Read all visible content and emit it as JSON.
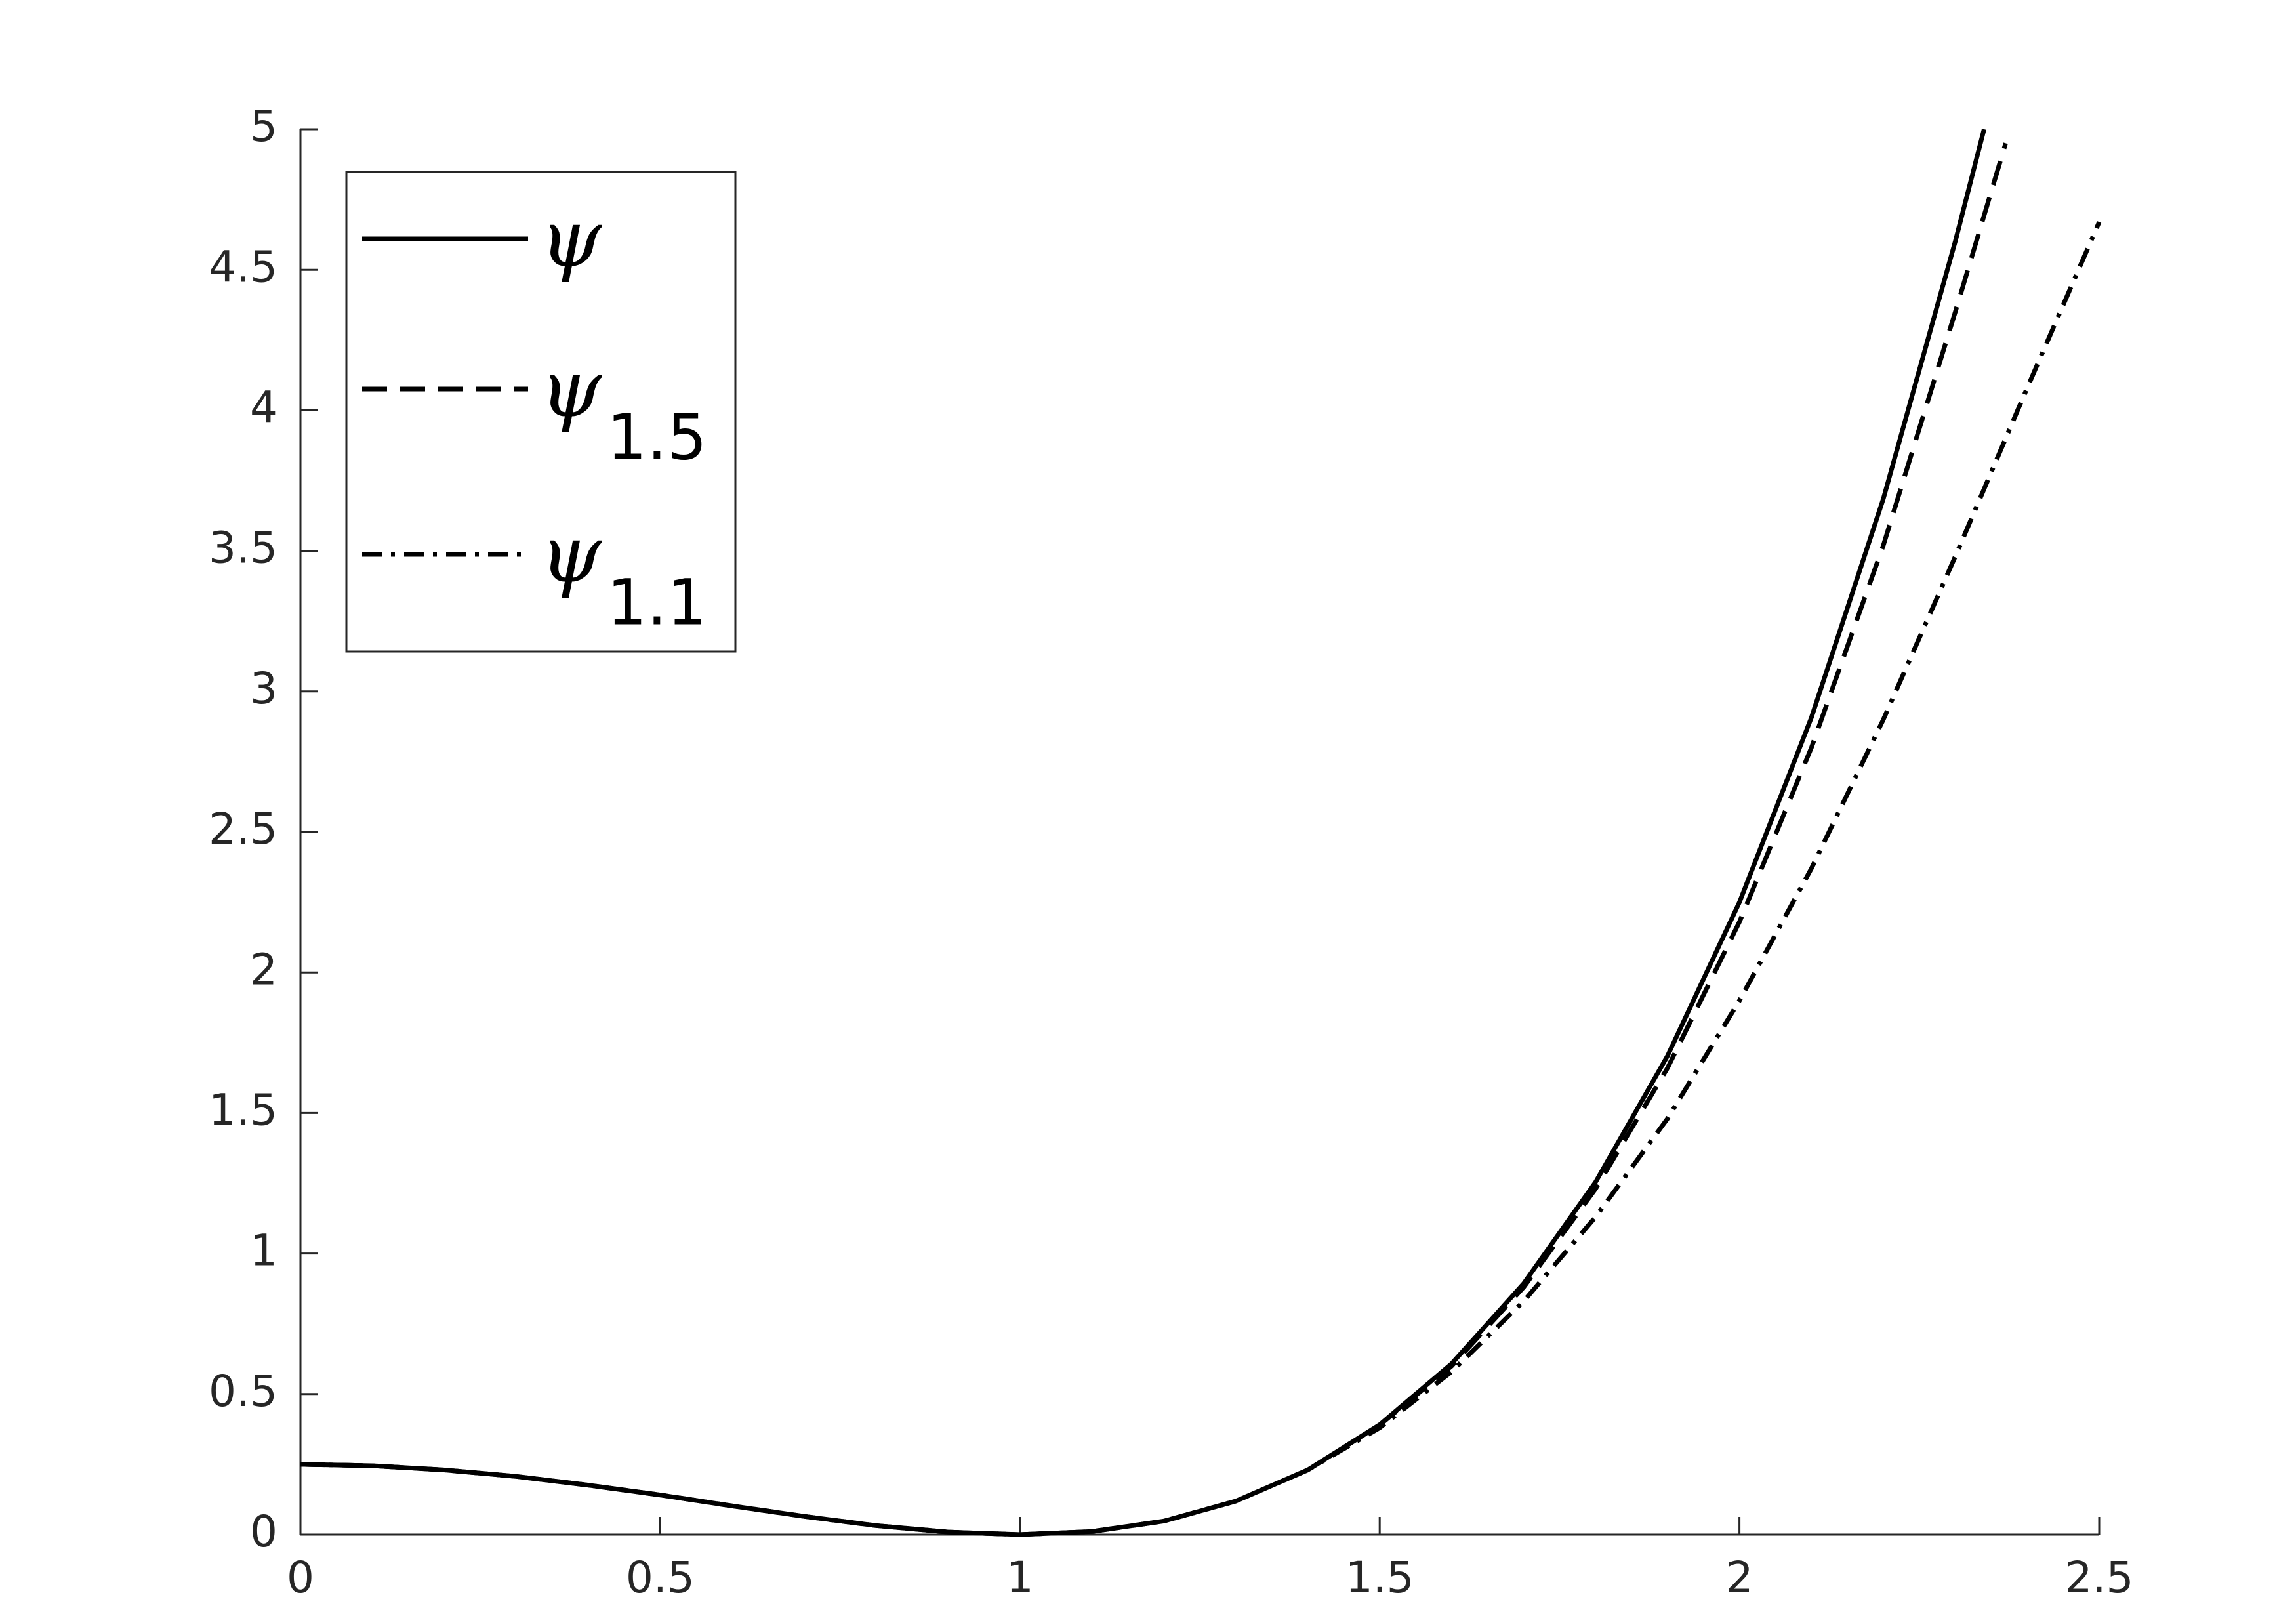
{
  "chart_data": {
    "type": "line",
    "xlim": [
      0,
      2.5
    ],
    "xticks": [
      0,
      0.5,
      1,
      1.5,
      2,
      2.5
    ],
    "ylim": [
      0,
      5
    ],
    "yticks": [
      0,
      0.5,
      1,
      1.5,
      2,
      2.5,
      3,
      3.5,
      4,
      4.5,
      5
    ],
    "legend": "upper left",
    "series": [
      {
        "name": "ψ",
        "color": "#000000",
        "dash": "solid",
        "x": [
          0,
          0.1,
          0.2,
          0.3,
          0.4,
          0.5,
          0.6,
          0.7,
          0.8,
          0.9,
          1,
          1.1,
          1.2,
          1.3,
          1.4,
          1.5,
          1.6,
          1.7,
          1.8,
          1.9,
          2,
          2.1,
          2.2,
          2.3,
          2.34
        ],
        "values": [
          0.25,
          0.245,
          0.23,
          0.207,
          0.176,
          0.141,
          0.102,
          0.065,
          0.032,
          0.009,
          0,
          0.011,
          0.048,
          0.119,
          0.23,
          0.391,
          0.608,
          0.893,
          1.254,
          1.703,
          2.25,
          2.907,
          3.686,
          4.601,
          5.0
        ]
      },
      {
        "name": "ψ",
        "subscript": "1.5",
        "color": "#000000",
        "dash": "dashed",
        "x": [
          0,
          0.1,
          0.2,
          0.3,
          0.4,
          0.5,
          0.6,
          0.7,
          0.8,
          0.9,
          1,
          1.1,
          1.2,
          1.3,
          1.4,
          1.5,
          1.6,
          1.7,
          1.8,
          1.9,
          2,
          2.1,
          2.2,
          2.3,
          2.37
        ],
        "values": [
          0.25,
          0.245,
          0.23,
          0.207,
          0.176,
          0.141,
          0.102,
          0.065,
          0.032,
          0.009,
          0,
          0.011,
          0.048,
          0.119,
          0.23,
          0.39,
          0.6,
          0.88,
          1.23,
          1.66,
          2.18,
          2.8,
          3.52,
          4.35,
          4.95
        ]
      },
      {
        "name": "ψ",
        "subscript": "1.1",
        "color": "#000000",
        "dash": "dashdot",
        "x": [
          0,
          0.1,
          0.2,
          0.3,
          0.4,
          0.5,
          0.6,
          0.7,
          0.8,
          0.9,
          1,
          1.1,
          1.2,
          1.3,
          1.4,
          1.5,
          1.6,
          1.7,
          1.8,
          1.9,
          2,
          2.1,
          2.2,
          2.3,
          2.4,
          2.5
        ],
        "values": [
          0.25,
          0.245,
          0.23,
          0.207,
          0.176,
          0.141,
          0.102,
          0.065,
          0.032,
          0.009,
          0,
          0.011,
          0.048,
          0.119,
          0.23,
          0.38,
          0.58,
          0.83,
          1.13,
          1.48,
          1.9,
          2.37,
          2.9,
          3.48,
          4.08,
          4.67
        ]
      }
    ]
  }
}
